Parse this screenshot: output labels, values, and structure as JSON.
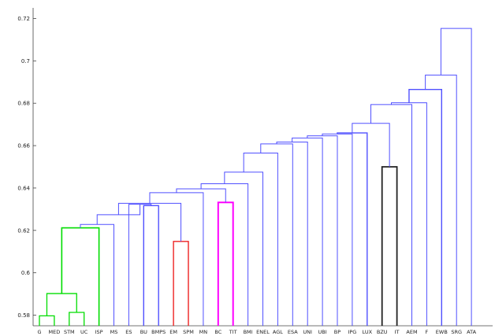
{
  "chart_data": {
    "type": "dendrogram",
    "title": "",
    "xlabel": "",
    "ylabel": "",
    "ylim": [
      0.575,
      0.725
    ],
    "y_ticks": [
      0.58,
      0.6,
      0.62,
      0.64,
      0.66,
      0.68,
      0.7,
      0.72
    ],
    "grid": false,
    "leaves": [
      "G",
      "MED",
      "STM",
      "UC",
      "ISP",
      "MS",
      "ES",
      "BU",
      "BMPS",
      "EM",
      "SPM",
      "MN",
      "BC",
      "TIT",
      "BMI",
      "ENEL",
      "AGL",
      "ESA",
      "UNI",
      "UBI",
      "BP",
      "IPG",
      "LUX",
      "BZU",
      "IT",
      "AEM",
      "F",
      "EWB",
      "SRG",
      "ATA"
    ],
    "merges": [
      {
        "left": "G",
        "right": "MED",
        "height": 0.5797,
        "color": "#00dd00"
      },
      {
        "left": "STM",
        "right": "UC",
        "height": 0.5813,
        "color": "#00dd00"
      },
      {
        "left": "G+MED",
        "right": "STM+UC",
        "height": 0.5902,
        "color": "#00dd00"
      },
      {
        "left": "G+MED+STM+UC",
        "right": "ISP",
        "height": 0.6212,
        "color": "#00dd00"
      },
      {
        "left": "GREEN",
        "right": "MS",
        "height": 0.6228,
        "color": "#5050ff"
      },
      {
        "left": "BU",
        "right": "BMPS",
        "height": 0.6317,
        "color": "#5050ff"
      },
      {
        "left": "ES",
        "right": "BU+BMPS",
        "height": 0.6323,
        "color": "#5050ff"
      },
      {
        "left": "EM",
        "right": "SPM",
        "height": 0.6148,
        "color": "#ee2222"
      },
      {
        "left": "BC",
        "right": "TIT",
        "height": 0.6332,
        "color": "#ff00ff"
      },
      {
        "left": "GREEN+MS",
        "right": "ES+BU+BMPS",
        "height": 0.6274,
        "color": "#5050ff"
      },
      {
        "left": "EM+SPM",
        "right": "GREEN+MS+ES+BU+BMPS",
        "height": 0.6328,
        "color": "#5050ff"
      },
      {
        "left": "BZU",
        "right": "IT",
        "height": 0.65,
        "color": "#222222"
      }
    ]
  }
}
